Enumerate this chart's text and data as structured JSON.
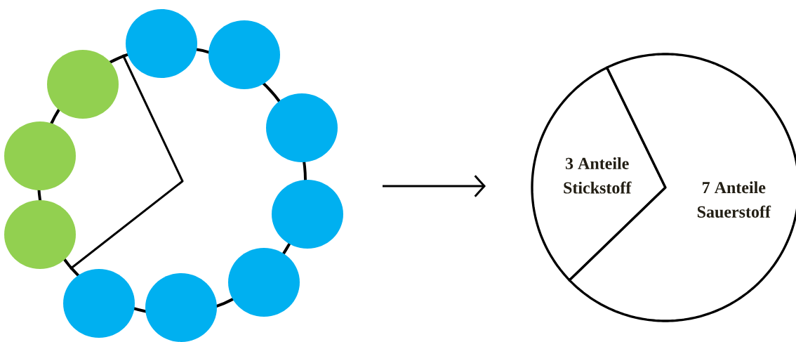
{
  "chart_data": {
    "type": "pie",
    "categories": [
      "Stickstoff",
      "Sauerstoff"
    ],
    "values": [
      3,
      7
    ],
    "colors": [
      "#ffffff",
      "#ffffff"
    ],
    "value_labels": [
      "3 Anteile",
      "7 Anteile"
    ]
  }
}
